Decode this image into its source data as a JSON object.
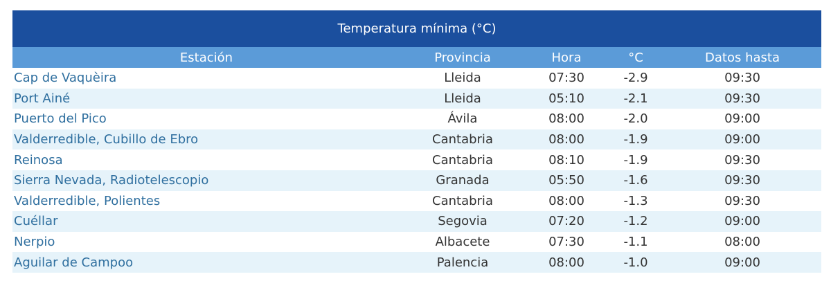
{
  "header": {
    "title": "Temperatura mínima (°C)"
  },
  "table": {
    "columns": [
      "Estación",
      "Provincia",
      "Hora",
      "°C",
      "Datos hasta"
    ],
    "rows": [
      [
        "Cap de Vaquèira",
        "Lleida",
        "07:30",
        "-2.9",
        "09:30"
      ],
      [
        "Port Ainé",
        "Lleida",
        "05:10",
        "-2.1",
        "09:30"
      ],
      [
        "Puerto del Pico",
        "Ávila",
        "08:00",
        "-2.0",
        "09:00"
      ],
      [
        "Valderredible, Cubillo de Ebro",
        "Cantabria",
        "08:00",
        "-1.9",
        "09:00"
      ],
      [
        "Reinosa",
        "Cantabria",
        "08:10",
        "-1.9",
        "09:30"
      ],
      [
        "Sierra Nevada, Radiotelescopio",
        "Granada",
        "05:50",
        "-1.6",
        "09:30"
      ],
      [
        "Valderredible, Polientes",
        "Cantabria",
        "08:00",
        "-1.3",
        "09:30"
      ],
      [
        "Cuéllar",
        "Segovia",
        "07:20",
        "-1.2",
        "09:00"
      ],
      [
        "Nerpio",
        "Albacete",
        "07:30",
        "-1.1",
        "08:00"
      ],
      [
        "Aguilar de Campoo",
        "Palencia",
        "08:00",
        "-1.0",
        "09:00"
      ]
    ]
  }
}
